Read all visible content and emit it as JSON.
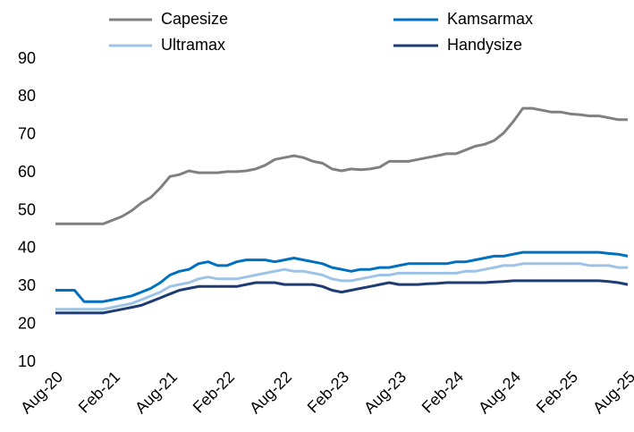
{
  "chart_data": {
    "type": "line",
    "categories": [
      "Aug-20",
      null,
      null,
      null,
      null,
      null,
      "Feb-21",
      null,
      null,
      null,
      null,
      null,
      "Aug-21",
      null,
      null,
      null,
      null,
      null,
      "Feb-22",
      null,
      null,
      null,
      null,
      null,
      "Aug-22",
      null,
      null,
      null,
      null,
      null,
      "Feb-23",
      null,
      null,
      null,
      null,
      null,
      "Aug-23",
      null,
      null,
      null,
      null,
      null,
      "Feb-24",
      null,
      null,
      null,
      null,
      null,
      "Aug-24",
      null,
      null,
      null,
      null,
      null,
      "Feb-25",
      null,
      null,
      null,
      null,
      null,
      "Aug-25"
    ],
    "series": [
      {
        "name": "Capesize",
        "color": "#808080",
        "values": [
          46.5,
          46.5,
          46.5,
          46.5,
          46.5,
          46.5,
          47.5,
          48.5,
          50,
          52,
          53.5,
          56,
          59,
          59.5,
          60.5,
          60,
          60,
          60,
          60.3,
          60.3,
          60.5,
          61,
          62,
          63.5,
          64,
          64.5,
          64,
          63,
          62.5,
          61,
          60.5,
          61,
          60.8,
          61,
          61.5,
          63,
          63,
          63,
          63.5,
          64,
          64.5,
          65,
          65,
          66,
          67,
          67.5,
          68.5,
          70.5,
          73.5,
          77,
          77,
          76.5,
          76,
          76,
          75.5,
          75.3,
          75,
          75,
          74.5,
          74,
          74
        ]
      },
      {
        "name": "Kamsarmax",
        "color": "#0070c0",
        "values": [
          29,
          29,
          29,
          26,
          26,
          26,
          26.5,
          27,
          27.5,
          28.5,
          29.5,
          31,
          33,
          34,
          34.5,
          36,
          36.5,
          35.5,
          35.5,
          36.5,
          37,
          37,
          37,
          36.5,
          37,
          37.5,
          37,
          36.5,
          36,
          35,
          34.5,
          34,
          34.5,
          34.5,
          35,
          35,
          35.5,
          36,
          36,
          36,
          36,
          36,
          36.5,
          36.5,
          37,
          37.5,
          38,
          38,
          38.5,
          39,
          39,
          39,
          39,
          39,
          39,
          39,
          39,
          39,
          38.7,
          38.5,
          38
        ]
      },
      {
        "name": "Ultramax",
        "color": "#9dc3e6",
        "values": [
          24,
          24,
          24,
          24,
          24,
          24,
          24.5,
          25,
          25.5,
          26.5,
          27.5,
          28.5,
          30,
          30.5,
          31,
          32,
          32.5,
          32,
          32,
          32,
          32.5,
          33,
          33.5,
          34,
          34.5,
          34,
          34,
          33.5,
          33,
          32,
          31.5,
          31.5,
          32,
          32.5,
          33,
          33,
          33.5,
          33.5,
          33.5,
          33.5,
          33.5,
          33.5,
          33.5,
          34,
          34,
          34.5,
          35,
          35.5,
          35.5,
          36,
          36,
          36,
          36,
          36,
          36,
          36,
          35.5,
          35.5,
          35.5,
          35,
          35
        ]
      },
      {
        "name": "Handysize",
        "color": "#1f3b73",
        "values": [
          23,
          23,
          23,
          23,
          23,
          23,
          23.5,
          24,
          24.5,
          25,
          26,
          27,
          28,
          29,
          29.5,
          30,
          30,
          30,
          30,
          30,
          30.5,
          31,
          31,
          31,
          30.5,
          30.5,
          30.5,
          30.5,
          30,
          29,
          28.5,
          29,
          29.5,
          30,
          30.5,
          31,
          30.5,
          30.5,
          30.5,
          30.7,
          30.8,
          31,
          31,
          31,
          31,
          31,
          31.2,
          31.3,
          31.5,
          31.5,
          31.5,
          31.5,
          31.5,
          31.5,
          31.5,
          31.5,
          31.5,
          31.5,
          31.3,
          31,
          30.5
        ]
      }
    ],
    "ylim": [
      10,
      90
    ],
    "yticks": [
      10,
      20,
      30,
      40,
      50,
      60,
      70,
      80,
      90
    ],
    "grid": false
  }
}
